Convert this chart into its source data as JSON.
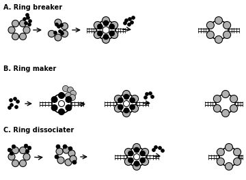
{
  "title_A": "A. Ring breaker",
  "title_B": "B. Ring maker",
  "title_C": "C. Ring dissociater",
  "bg_color": "#ffffff",
  "gray_color": "#b0b0b0",
  "dark_gray": "#808080",
  "black": "#000000",
  "light_gray": "#cccccc"
}
